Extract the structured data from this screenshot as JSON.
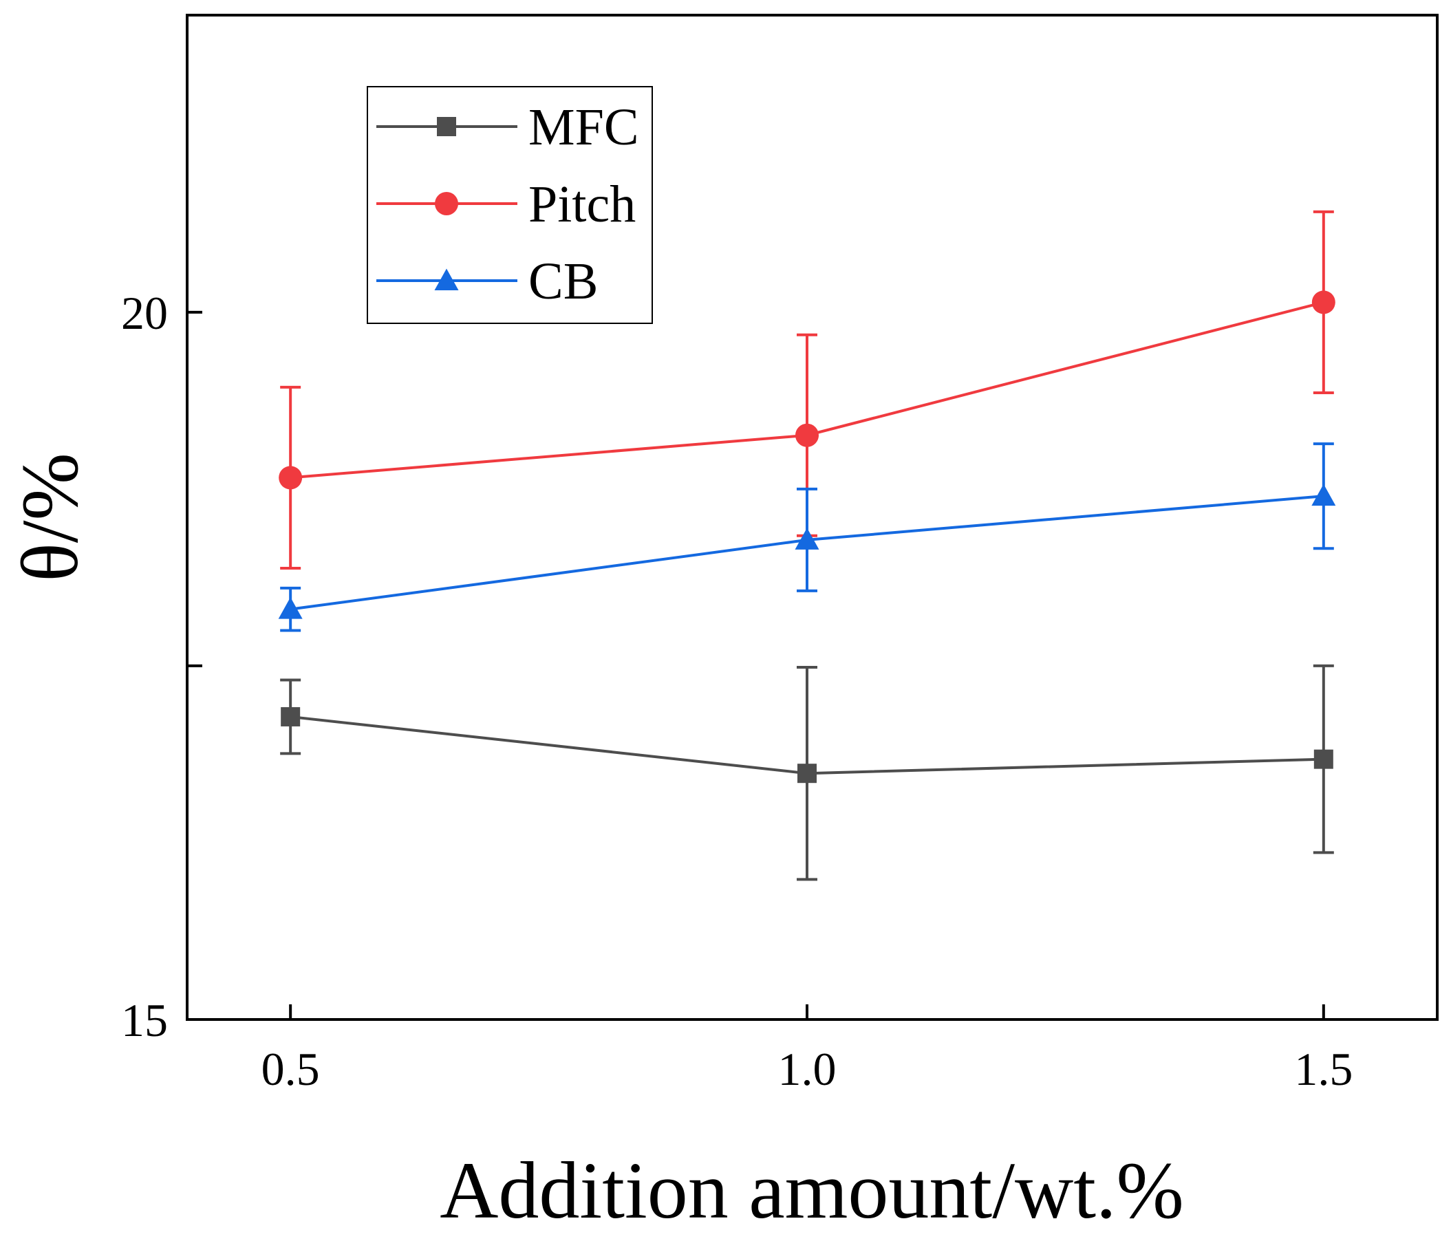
{
  "chart_data": {
    "type": "line",
    "title": "",
    "xlabel": "Addition amount/wt.%",
    "ylabel": "θ/%",
    "x": [
      0.5,
      1.0,
      1.5
    ],
    "x_ticks": [
      "0.5",
      "1.0",
      "1.5"
    ],
    "xlim": [
      0.4,
      1.61
    ],
    "ylim": [
      15,
      22.1
    ],
    "y_ticks": [
      15,
      17.5,
      20
    ],
    "y_tick_labels": [
      "15",
      "",
      "20"
    ],
    "grid": false,
    "legend_position": "top-left",
    "series": [
      {
        "name": "MFC",
        "color": "#4d4d4d",
        "marker": "square",
        "values": [
          17.14,
          16.74,
          16.84
        ],
        "errors": [
          0.26,
          0.75,
          0.66
        ]
      },
      {
        "name": "Pitch",
        "color": "#f03a3f",
        "marker": "circle",
        "values": [
          18.83,
          19.13,
          20.07
        ],
        "errors": [
          0.64,
          0.71,
          0.64
        ]
      },
      {
        "name": "CB",
        "color": "#1469e0",
        "marker": "triangle",
        "values": [
          17.9,
          18.39,
          18.7
        ],
        "errors": [
          0.15,
          0.36,
          0.37
        ]
      }
    ]
  }
}
